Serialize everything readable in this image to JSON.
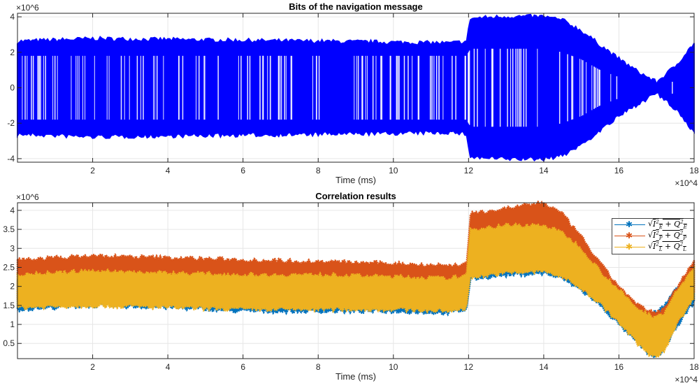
{
  "chart_data": [
    {
      "type": "scatter",
      "title": "Bits of the navigation message",
      "xlabel": "Time (ms)",
      "ylabel": "",
      "x_exponent_label": "×10^4",
      "y_exponent_label": "×10^6",
      "xlim": [
        0,
        180000
      ],
      "ylim": [
        -4200000.0,
        4200000.0
      ],
      "xticks": [
        20000,
        40000,
        60000,
        80000,
        100000,
        120000,
        140000,
        160000,
        180000
      ],
      "xtick_labels": [
        "2",
        "4",
        "6",
        "8",
        "10",
        "12",
        "14",
        "16",
        "18"
      ],
      "yticks": [
        -4000000.0,
        -2000000.0,
        0,
        2000000.0,
        4000000.0
      ],
      "ytick_labels": [
        "-4",
        "-2",
        "0",
        "2",
        "4"
      ],
      "grid": true,
      "color": "#0000ff",
      "envelope": {
        "x": [
          0,
          20000,
          40000,
          60000,
          80000,
          100000,
          115000,
          119500,
          120500,
          130000,
          140000,
          145000,
          150000,
          155000,
          160000,
          165000,
          170000,
          175000,
          180000
        ],
        "upper": [
          2600000.0,
          2750000.0,
          2700000.0,
          2650000.0,
          2600000.0,
          2550000.0,
          2500000.0,
          2600000.0,
          3900000.0,
          4000000.0,
          4000000.0,
          3800000.0,
          3200000.0,
          2400000.0,
          1600000.0,
          900000.0,
          300000.0,
          1200000.0,
          2500000.0
        ],
        "inner": [
          1800000.0,
          1800000.0,
          1800000.0,
          1800000.0,
          1800000.0,
          1800000.0,
          1800000.0,
          1800000.0,
          2200000.0,
          2200000.0,
          2200000.0,
          2000000.0,
          1600000.0,
          1000000.0,
          600000.0,
          200000.0,
          0.0,
          400000.0,
          1400000.0
        ]
      }
    },
    {
      "type": "scatter",
      "title": "Correlation results",
      "xlabel": "Time (ms)",
      "ylabel": "",
      "x_exponent_label": "×10^4",
      "y_exponent_label": "×10^6",
      "xlim": [
        0,
        180000
      ],
      "ylim": [
        100000.0,
        4200000.0
      ],
      "xticks": [
        20000,
        40000,
        60000,
        80000,
        100000,
        120000,
        140000,
        160000,
        180000
      ],
      "xtick_labels": [
        "2",
        "4",
        "6",
        "8",
        "10",
        "12",
        "14",
        "16",
        "18"
      ],
      "yticks": [
        500000.0,
        1000000.0,
        1500000.0,
        2000000.0,
        2500000.0,
        3000000.0,
        3500000.0,
        4000000.0
      ],
      "ytick_labels": [
        "0.5",
        "1",
        "1.5",
        "2",
        "2.5",
        "3",
        "3.5",
        "4"
      ],
      "grid": true,
      "legend_placement": "top-right",
      "x": [
        0,
        20000,
        40000,
        60000,
        80000,
        100000,
        115000,
        119500,
        120500,
        130000,
        140000,
        145000,
        150000,
        155000,
        160000,
        165000,
        169000,
        172000,
        175000,
        180000
      ],
      "series": [
        {
          "name": "sqrt(I_E^2 + Q_E^2)",
          "color": "#0072bd",
          "upper": [
            2200000.0,
            2300000.0,
            2250000.0,
            2200000.0,
            2200000.0,
            2200000.0,
            2200000.0,
            2300000.0,
            3500000.0,
            3500000.0,
            3500000.0,
            3300000.0,
            2900000.0,
            2300000.0,
            1800000.0,
            1300000.0,
            1300000.0,
            1500000.0,
            1900000.0,
            2400000.0
          ],
          "lower": [
            1400000.0,
            1500000.0,
            1450000.0,
            1350000.0,
            1350000.0,
            1350000.0,
            1300000.0,
            1400000.0,
            2200000.0,
            2300000.0,
            2350000.0,
            2200000.0,
            1900000.0,
            1500000.0,
            1000000.0,
            500000.0,
            150000.0,
            300000.0,
            900000.0,
            1600000.0
          ]
        },
        {
          "name": "sqrt(I_P^2 + Q_P^2)",
          "color": "#d95319",
          "upper": [
            2700000.0,
            2800000.0,
            2750000.0,
            2700000.0,
            2650000.0,
            2600000.0,
            2550000.0,
            2600000.0,
            3900000.0,
            4050000.0,
            4200000.0,
            3900000.0,
            3300000.0,
            2600000.0,
            2000000.0,
            1500000.0,
            1300000.0,
            1400000.0,
            1900000.0,
            2700000.0
          ],
          "lower": [
            1600000.0,
            1600000.0,
            1550000.0,
            1500000.0,
            1500000.0,
            1500000.0,
            1500000.0,
            1600000.0,
            2400000.0,
            2500000.0,
            2500000.0,
            2300000.0,
            2000000.0,
            1600000.0,
            1100000.0,
            600000.0,
            200000.0,
            400000.0,
            1000000.0,
            1800000.0
          ]
        },
        {
          "name": "sqrt(I_L^2 + Q_L^2)",
          "color": "#edb120",
          "upper": [
            2300000.0,
            2400000.0,
            2350000.0,
            2300000.0,
            2300000.0,
            2250000.0,
            2200000.0,
            2300000.0,
            3500000.0,
            3600000.0,
            3600000.0,
            3400000.0,
            3000000.0,
            2400000.0,
            1900000.0,
            1400000.0,
            1200000.0,
            1300000.0,
            1800000.0,
            2500000.0
          ],
          "lower": [
            1450000.0,
            1500000.0,
            1450000.0,
            1400000.0,
            1400000.0,
            1400000.0,
            1350000.0,
            1450000.0,
            2250000.0,
            2350000.0,
            2400000.0,
            2250000.0,
            1950000.0,
            1550000.0,
            1050000.0,
            500000.0,
            120000.0,
            300000.0,
            950000.0,
            1700000.0
          ]
        }
      ]
    }
  ],
  "legend": {
    "entries": [
      {
        "base": "I",
        "sub": "E",
        "color": "#0072bd"
      },
      {
        "base": "I",
        "sub": "P",
        "color": "#d95319"
      },
      {
        "base": "I",
        "sub": "L",
        "color": "#edb120"
      }
    ],
    "star_glyph": "✱"
  }
}
